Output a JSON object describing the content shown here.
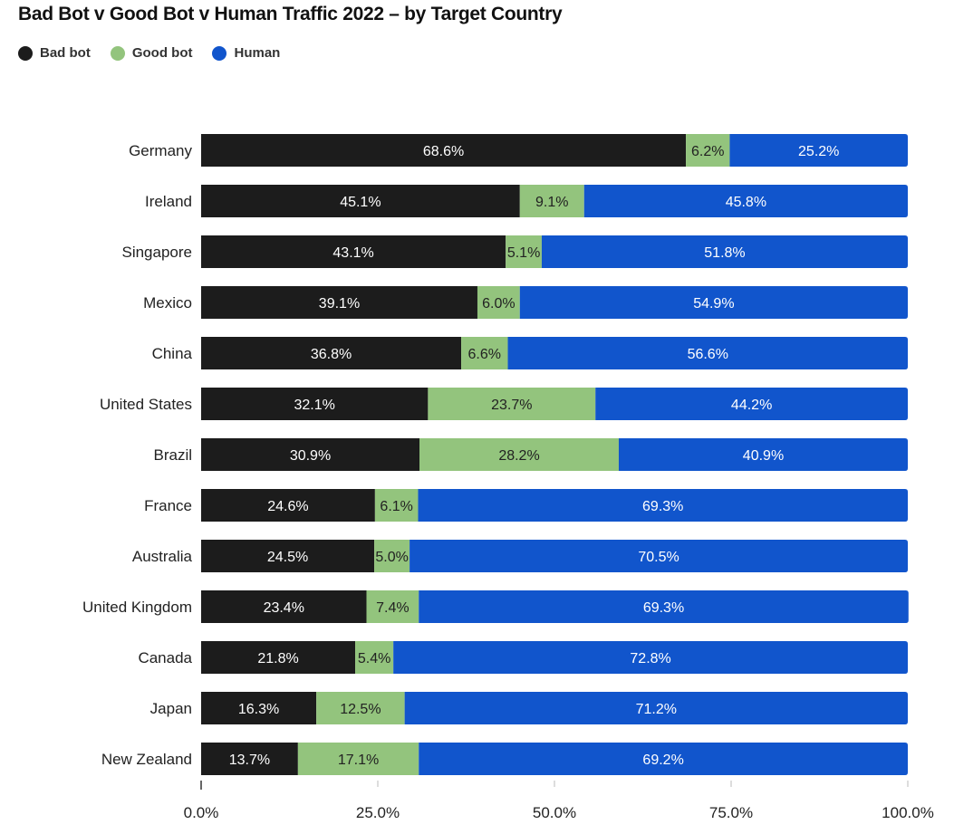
{
  "title": "Bad Bot v Good Bot v Human Traffic 2022 – by Target Country",
  "colors": {
    "bad_bot": "#1c1c1c",
    "good_bot": "#93c47d",
    "human": "#1155cc"
  },
  "chart_data": {
    "type": "bar",
    "orientation": "horizontal",
    "stacked": true,
    "title": "Bad Bot v Good Bot v Human Traffic 2022 – by Target Country",
    "legend": [
      "Bad bot",
      "Good bot",
      "Human"
    ],
    "legend_position": "top-left",
    "categories": [
      "Germany",
      "Ireland",
      "Singapore",
      "Mexico",
      "China",
      "United States",
      "Brazil",
      "France",
      "Australia",
      "United Kingdom",
      "Canada",
      "Japan",
      "New Zealand"
    ],
    "series": [
      {
        "name": "Bad bot",
        "values": [
          68.6,
          45.1,
          43.1,
          39.1,
          36.8,
          32.1,
          30.9,
          24.6,
          24.5,
          23.4,
          21.8,
          16.3,
          13.7
        ]
      },
      {
        "name": "Good bot",
        "values": [
          6.2,
          9.1,
          5.1,
          6.0,
          6.6,
          23.7,
          28.2,
          6.1,
          5.0,
          7.4,
          5.4,
          12.5,
          17.1
        ]
      },
      {
        "name": "Human",
        "values": [
          25.2,
          45.8,
          51.8,
          54.9,
          56.6,
          44.2,
          40.9,
          69.3,
          70.5,
          69.3,
          72.8,
          71.2,
          69.2
        ]
      }
    ],
    "xlim": [
      0,
      100
    ],
    "xticks": [
      "0.0%",
      "25.0%",
      "50.0%",
      "75.0%",
      "100.0%"
    ],
    "xlabel": "",
    "ylabel": "",
    "grid": false
  }
}
